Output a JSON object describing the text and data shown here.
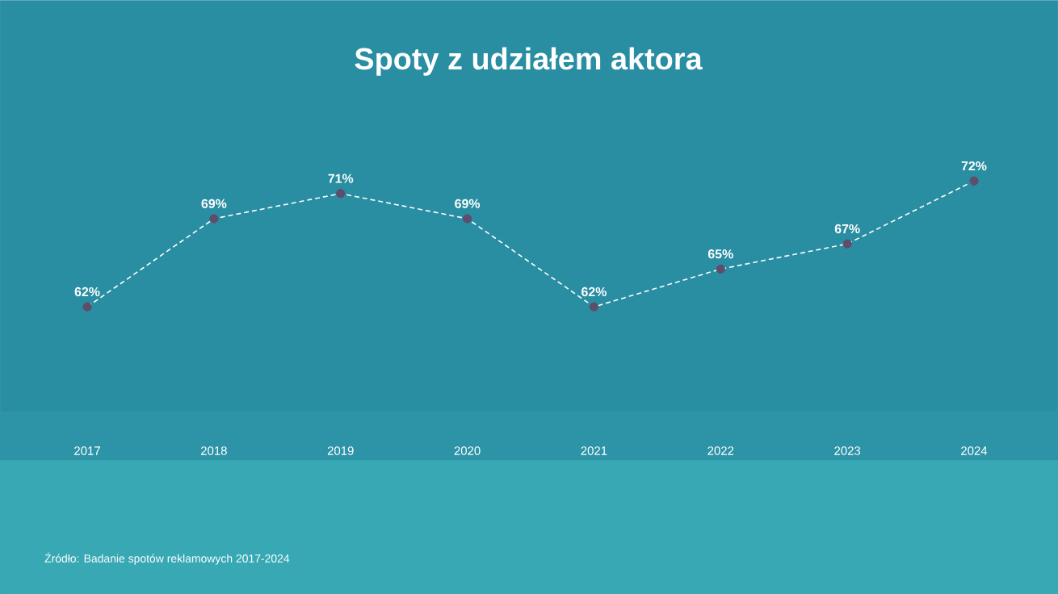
{
  "chart_data": {
    "type": "line",
    "title": "Spoty z udziałem aktora",
    "categories": [
      "2017",
      "2018",
      "2019",
      "2020",
      "2021",
      "2022",
      "2023",
      "2024"
    ],
    "series": [
      {
        "color": "#ffffff",
        "colors": [
          "#5e4d6b",
          "#5e4d6b",
          "#5e4d6b",
          "#5e4d6b",
          "#5e4d6b",
          "#5e4d6b",
          "#5e4d6b",
          "#5e4d6b"
        ],
        "values": [
          62,
          69,
          71,
          69,
          62,
          65,
          67,
          72
        ],
        "value_labels": [
          "62%",
          "69%",
          "71%",
          "69%",
          "62%",
          "65%",
          "67%",
          "72%"
        ]
      }
    ],
    "marker": "circle",
    "line_style": "dashed",
    "grid": false,
    "tick_labels": "x",
    "annotations": [
      "Źródło: Badanie spotów reklamowych 2017-2024"
    ]
  }
}
